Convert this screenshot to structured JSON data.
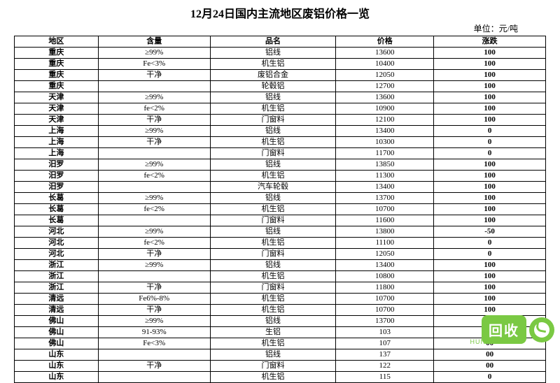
{
  "title": "12月24日国内主流地区废铝价格一览",
  "unit": "单位：元/吨",
  "headers": {
    "region": "地区",
    "content": "含量",
    "name": "品名",
    "price": "价格",
    "change": "涨跌"
  },
  "rows": [
    {
      "region": "重庆",
      "content": "≥99%",
      "name": "铝线",
      "price": "13600",
      "change": "100"
    },
    {
      "region": "重庆",
      "content": "Fe<3%",
      "name": "机生铝",
      "price": "10400",
      "change": "100"
    },
    {
      "region": "重庆",
      "content": "干净",
      "name": "废铝合金",
      "price": "12050",
      "change": "100"
    },
    {
      "region": "重庆",
      "content": "",
      "name": "轮毂铝",
      "price": "12700",
      "change": "100"
    },
    {
      "region": "天津",
      "content": "≥99%",
      "name": "铝线",
      "price": "13600",
      "change": "100"
    },
    {
      "region": "天津",
      "content": "fe<2%",
      "name": "机生铝",
      "price": "10900",
      "change": "100"
    },
    {
      "region": "天津",
      "content": "干净",
      "name": "门窗料",
      "price": "12100",
      "change": "100"
    },
    {
      "region": "上海",
      "content": "≥99%",
      "name": "铝线",
      "price": "13400",
      "change": "0"
    },
    {
      "region": "上海",
      "content": "干净",
      "name": "机生铝",
      "price": "10300",
      "change": "0"
    },
    {
      "region": "上海",
      "content": "",
      "name": "门窗料",
      "price": "11700",
      "change": "0"
    },
    {
      "region": "汨罗",
      "content": "≥99%",
      "name": "铝线",
      "price": "13850",
      "change": "100"
    },
    {
      "region": "汨罗",
      "content": "fe<2%",
      "name": "机生铝",
      "price": "11300",
      "change": "100"
    },
    {
      "region": "汨罗",
      "content": "",
      "name": "汽车轮毂",
      "price": "13400",
      "change": "100"
    },
    {
      "region": "长葛",
      "content": "≥99%",
      "name": "铝线",
      "price": "13700",
      "change": "100"
    },
    {
      "region": "长葛",
      "content": "fe<2%",
      "name": "机生铝",
      "price": "10700",
      "change": "100"
    },
    {
      "region": "长葛",
      "content": "",
      "name": "门窗料",
      "price": "11600",
      "change": "100"
    },
    {
      "region": "河北",
      "content": "≥99%",
      "name": "铝线",
      "price": "13800",
      "change": "-50"
    },
    {
      "region": "河北",
      "content": "fe<2%",
      "name": "机生铝",
      "price": "11100",
      "change": "0"
    },
    {
      "region": "河北",
      "content": "干净",
      "name": "门窗料",
      "price": "12050",
      "change": "0"
    },
    {
      "region": "浙江",
      "content": "≥99%",
      "name": "铝线",
      "price": "13400",
      "change": "100"
    },
    {
      "region": "浙江",
      "content": "",
      "name": "机生铝",
      "price": "10800",
      "change": "100"
    },
    {
      "region": "浙江",
      "content": "干净",
      "name": "门窗料",
      "price": "11800",
      "change": "100"
    },
    {
      "region": "清远",
      "content": "Fe6%-8%",
      "name": "机生铝",
      "price": "10700",
      "change": "100"
    },
    {
      "region": "清远",
      "content": "干净",
      "name": "机生铝",
      "price": "10700",
      "change": "100"
    },
    {
      "region": "佛山",
      "content": "≥99%",
      "name": "铝线",
      "price": "13700",
      "change": "100"
    },
    {
      "region": "佛山",
      "content": "91-93%",
      "name": "生铝",
      "price": "103",
      "change": "0"
    },
    {
      "region": "佛山",
      "content": "Fe<3%",
      "name": "机生铝",
      "price": "107",
      "change": "00"
    },
    {
      "region": "山东",
      "content": "",
      "name": "铝线",
      "price": "137",
      "change": "00"
    },
    {
      "region": "山东",
      "content": "干净",
      "name": "门窗料",
      "price": "122",
      "change": "00"
    },
    {
      "region": "山东",
      "content": "",
      "name": "机生铝",
      "price": "115",
      "change": "0"
    }
  ],
  "watermark": {
    "text": "回收",
    "sub": "HUISHOUREN"
  }
}
